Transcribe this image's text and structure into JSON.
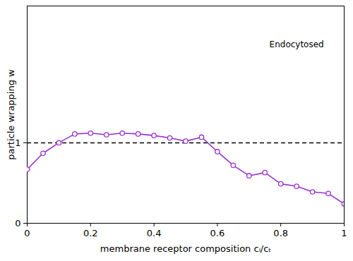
{
  "chart_data": {
    "type": "line",
    "x_label": "membrane receptor composition cₗ/cₜ",
    "y_label": "particle wrapping w",
    "x": [
      0,
      0.05,
      0.1,
      0.15,
      0.2,
      0.25,
      0.3,
      0.35,
      0.4,
      0.45,
      0.5,
      0.55,
      0.6,
      0.65,
      0.7,
      0.75,
      0.8,
      0.85,
      0.9,
      0.95,
      1.0
    ],
    "series": [
      {
        "name": "particle wrapping",
        "color": "#9933cc",
        "marker": "circle",
        "line_style": "solid",
        "values": [
          0.67,
          0.87,
          1.0,
          1.11,
          1.12,
          1.1,
          1.12,
          1.11,
          1.09,
          1.06,
          1.02,
          1.07,
          0.89,
          0.72,
          0.59,
          0.63,
          0.49,
          0.46,
          0.39,
          0.37,
          0.24
        ]
      }
    ],
    "xlim": [
      0,
      1
    ],
    "ylim": [
      0,
      2.7
    ],
    "xticks": [
      0,
      0.2,
      0.4,
      0.6,
      0.8,
      1
    ],
    "yticks": [
      0,
      1
    ],
    "reference_line": {
      "y": 1,
      "line_style": "dashed",
      "color": "#000000"
    },
    "annotations": [
      {
        "text": "Endocytosed",
        "x": 0.85,
        "y": 2.22
      }
    ],
    "grid": false
  }
}
